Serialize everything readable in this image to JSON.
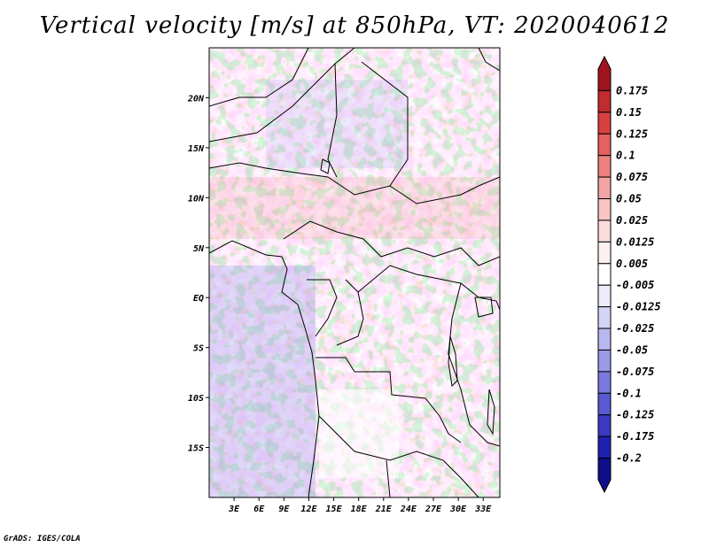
{
  "title": "Vertical velocity [m/s] at 850hPa, VT: 2020040612",
  "credit": "GrADS: IGES/COLA",
  "map": {
    "lon_range": [
      0,
      35
    ],
    "lat_range": [
      -20,
      25
    ],
    "lat_ticks": [
      {
        "value": 20,
        "label": "20N"
      },
      {
        "value": 15,
        "label": "15N"
      },
      {
        "value": 10,
        "label": "10N"
      },
      {
        "value": 5,
        "label": "5N"
      },
      {
        "value": 0,
        "label": "EQ"
      },
      {
        "value": -5,
        "label": "5S"
      },
      {
        "value": -10,
        "label": "10S"
      },
      {
        "value": -15,
        "label": "15S"
      }
    ],
    "lon_ticks": [
      {
        "value": 3,
        "label": "3E"
      },
      {
        "value": 6,
        "label": "6E"
      },
      {
        "value": 9,
        "label": "9E"
      },
      {
        "value": 12,
        "label": "12E"
      },
      {
        "value": 15,
        "label": "15E"
      },
      {
        "value": 18,
        "label": "18E"
      },
      {
        "value": 21,
        "label": "21E"
      },
      {
        "value": 24,
        "label": "24E"
      },
      {
        "value": 27,
        "label": "27E"
      },
      {
        "value": 30,
        "label": "30E"
      },
      {
        "value": 33,
        "label": "33E"
      }
    ]
  },
  "colorbar": {
    "labels": [
      "0.175",
      "0.15",
      "0.125",
      "0.1",
      "0.075",
      "0.05",
      "0.025",
      "0.0125",
      "0.005",
      "-0.005",
      "-0.0125",
      "-0.025",
      "-0.05",
      "-0.075",
      "-0.1",
      "-0.125",
      "-0.175",
      "-0.2"
    ],
    "colors": [
      "#a0141e",
      "#c22c2c",
      "#d84040",
      "#e66060",
      "#ee8080",
      "#f4a4a4",
      "#f8c4c4",
      "#fbdcdc",
      "#fdf0f0",
      "#ffffff",
      "#ececfa",
      "#d4d4f6",
      "#b8b8f0",
      "#9a9ae8",
      "#7a7ade",
      "#5a5ad2",
      "#3a3ac4",
      "#2020b0",
      "#0f0f8c"
    ]
  }
}
